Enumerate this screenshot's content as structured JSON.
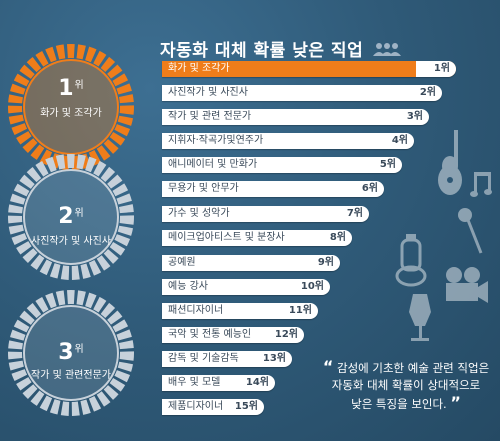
{
  "title": "자동화 대체 확률 낮은 직업",
  "colors": {
    "accent": "#ef7d1a",
    "background": "#2f5a78",
    "bar": "#ffffff"
  },
  "ranks": [
    {
      "num": "1",
      "suffix": "위",
      "name": "화가 및 조각가"
    },
    {
      "num": "2",
      "suffix": "위",
      "name": "사진작가 및 사진사"
    },
    {
      "num": "3",
      "suffix": "위",
      "name": "작가 및 관련전문가"
    }
  ],
  "bars": [
    {
      "label": "화가 및 조각가",
      "rank": "1위"
    },
    {
      "label": "사진작가 및 사진사",
      "rank": "2위"
    },
    {
      "label": "작가 및 관련 전문가",
      "rank": "3위"
    },
    {
      "label": "지휘자·작곡가및연주가",
      "rank": "4위"
    },
    {
      "label": "애니메이터 및 만화가",
      "rank": "5위"
    },
    {
      "label": "무용가 및 안무가",
      "rank": "6위"
    },
    {
      "label": "가수 및 성악가",
      "rank": "7위"
    },
    {
      "label": "메이크업아티스트 및 분장사",
      "rank": "8위"
    },
    {
      "label": "공예원",
      "rank": "9위"
    },
    {
      "label": "예능 강사",
      "rank": "10위"
    },
    {
      "label": "패션디자이너",
      "rank": "11위"
    },
    {
      "label": "국악 및 전통 예능인",
      "rank": "12위"
    },
    {
      "label": "감독 및 기술감독",
      "rank": "13위"
    },
    {
      "label": "배우 및 모델",
      "rank": "14위"
    },
    {
      "label": "제품디자이너",
      "rank": "15위"
    }
  ],
  "quote": {
    "open": "“",
    "line1": "감성에 기초한 예술 관련 직업은",
    "line2": "자동화 대체 확률이 상대적으로",
    "line3": "낮은 특징을 보인다.",
    "close": "”"
  }
}
